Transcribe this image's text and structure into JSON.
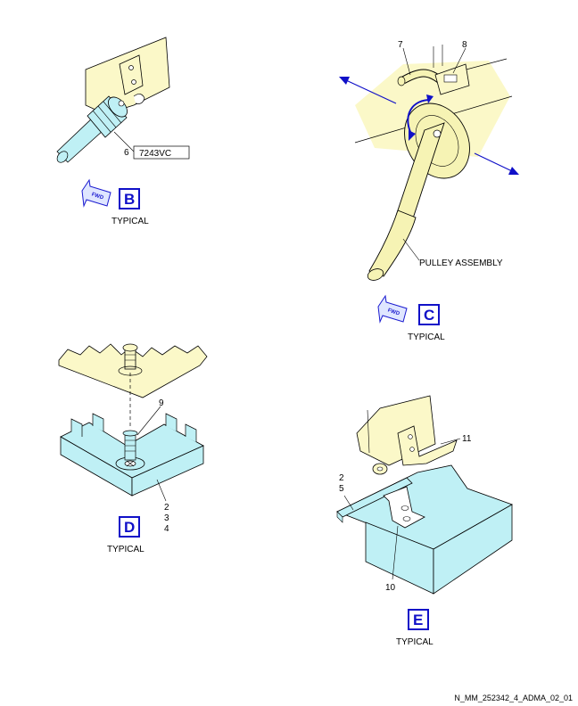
{
  "colors": {
    "structure": "#fbf8c8",
    "component": "#bff0f5",
    "handle": "#f6f3b4",
    "accent": "#1010c8",
    "line": "#000000"
  },
  "views": {
    "B": {
      "letter": "B",
      "caption": "TYPICAL",
      "fwd": "FWD",
      "callout": "6",
      "code": "7243VC"
    },
    "C": {
      "letter": "C",
      "caption": "TYPICAL",
      "fwd": "FWD",
      "callout_7": "7",
      "callout_8": "8",
      "assembly": "PULLEY ASSEMBLY"
    },
    "D": {
      "letter": "D",
      "caption": "TYPICAL",
      "callout_9": "9",
      "callout_2": "2",
      "callout_3": "3",
      "callout_4": "4"
    },
    "E": {
      "letter": "E",
      "caption": "TYPICAL",
      "callout_11": "11",
      "callout_2": "2",
      "callout_5": "5",
      "callout_10": "10"
    }
  },
  "footer": {
    "drawing_id": "N_MM_252342_4_ADMA_02_01"
  }
}
